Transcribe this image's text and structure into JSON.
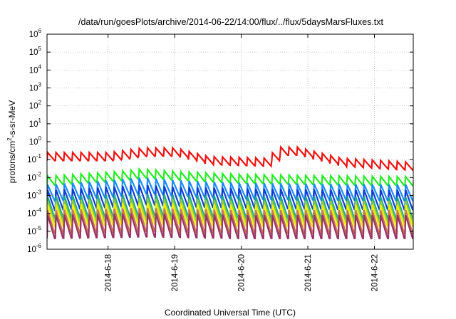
{
  "chart_data": {
    "type": "line",
    "title": "/data/run/goesPlots/archive/2014-06-22/14:00/flux/../flux/5daysMarsFluxes.txt",
    "xlabel": "Coordinated Universal Time (UTC)",
    "ylabel": "protons/cm2-s-sr-MeV",
    "y_scale": "log",
    "ylim": [
      1e-06,
      1000000.0
    ],
    "y_ticks": [
      {
        "base": "10",
        "exp": "-6",
        "value": 1e-06
      },
      {
        "base": "10",
        "exp": "-5",
        "value": 1e-05
      },
      {
        "base": "10",
        "exp": "-4",
        "value": 0.0001
      },
      {
        "base": "10",
        "exp": "-3",
        "value": 0.001
      },
      {
        "base": "10",
        "exp": "-2",
        "value": 0.01
      },
      {
        "base": "10",
        "exp": "-1",
        "value": 0.1
      },
      {
        "base": "10",
        "exp": "0",
        "value": 1
      },
      {
        "base": "10",
        "exp": "1",
        "value": 10
      },
      {
        "base": "10",
        "exp": "2",
        "value": 100
      },
      {
        "base": "10",
        "exp": "3",
        "value": 1000
      },
      {
        "base": "10",
        "exp": "4",
        "value": 10000
      },
      {
        "base": "10",
        "exp": "5",
        "value": 100000
      },
      {
        "base": "10",
        "exp": "6",
        "value": 1000000
      }
    ],
    "xlim": [
      "2014-06-17T02:00",
      "2014-06-22T14:00"
    ],
    "x_ticks": [
      {
        "label": "2014-6-18",
        "value": "2014-06-18"
      },
      {
        "label": "2014-6-19",
        "value": "2014-06-19"
      },
      {
        "label": "2014-6-20",
        "value": "2014-06-20"
      },
      {
        "label": "2014-6-21",
        "value": "2014-06-21"
      },
      {
        "label": "2014-6-22",
        "value": "2014-06-22"
      }
    ],
    "grid": true,
    "legend": "none",
    "series": [
      {
        "color": "#ee1111",
        "period_hours": 3.0,
        "peak_to_trough_decades": 0.45,
        "peaks": [
          [
            "2014-06-17T02:00",
            0.25
          ],
          [
            "2014-06-18T00:00",
            0.25
          ],
          [
            "2014-06-18T12:00",
            0.45
          ],
          [
            "2014-06-19T00:00",
            0.45
          ],
          [
            "2014-06-19T12:00",
            0.15
          ],
          [
            "2014-06-20T10:00",
            0.12
          ],
          [
            "2014-06-20T12:00",
            0.5
          ],
          [
            "2014-06-20T20:00",
            0.5
          ],
          [
            "2014-06-21T12:00",
            0.12
          ],
          [
            "2014-06-22T14:00",
            0.07
          ]
        ]
      },
      {
        "color": "#22ee22",
        "period_hours": 3.0,
        "peak_to_trough_decades": 0.5,
        "peaks": [
          [
            "2014-06-17T02:00",
            0.012
          ],
          [
            "2014-06-18T00:00",
            0.02
          ],
          [
            "2014-06-18T12:00",
            0.03
          ],
          [
            "2014-06-19T00:00",
            0.022
          ],
          [
            "2014-06-20T00:00",
            0.015
          ],
          [
            "2014-06-21T00:00",
            0.013
          ],
          [
            "2014-06-22T14:00",
            0.011
          ]
        ]
      },
      {
        "color": "#1a8cff",
        "period_hours": 3.0,
        "peak_to_trough_decades": 0.9,
        "peaks": [
          [
            "2014-06-17T02:00",
            0.004
          ],
          [
            "2014-06-18T00:00",
            0.007
          ],
          [
            "2014-06-18T12:00",
            0.01
          ],
          [
            "2014-06-19T00:00",
            0.007
          ],
          [
            "2014-06-20T00:00",
            0.005
          ],
          [
            "2014-06-21T00:00",
            0.0045
          ],
          [
            "2014-06-22T14:00",
            0.004
          ]
        ]
      },
      {
        "color": "#0d3fd6",
        "period_hours": 3.0,
        "peak_to_trough_decades": 1.1,
        "peaks": [
          [
            "2014-06-17T02:00",
            0.002
          ],
          [
            "2014-06-18T00:00",
            0.003
          ],
          [
            "2014-06-18T12:00",
            0.004
          ],
          [
            "2014-06-19T00:00",
            0.003
          ],
          [
            "2014-06-20T00:00",
            0.0025
          ],
          [
            "2014-06-21T00:00",
            0.0022
          ],
          [
            "2014-06-22T14:00",
            0.002
          ]
        ]
      },
      {
        "color": "#22aa88",
        "period_hours": 3.0,
        "peak_to_trough_decades": 1.2,
        "peaks": [
          [
            "2014-06-17T02:00",
            0.0009
          ],
          [
            "2014-06-18T12:00",
            0.0012
          ],
          [
            "2014-06-20T00:00",
            0.0009
          ],
          [
            "2014-06-22T14:00",
            0.0008
          ]
        ]
      },
      {
        "color": "#88cc44",
        "period_hours": 3.0,
        "peak_to_trough_decades": 1.2,
        "peaks": [
          [
            "2014-06-17T02:00",
            0.0005
          ],
          [
            "2014-06-18T12:00",
            0.0007
          ],
          [
            "2014-06-20T00:00",
            0.0005
          ],
          [
            "2014-06-22T14:00",
            0.0005
          ]
        ]
      },
      {
        "color": "#eeee00",
        "period_hours": 3.0,
        "peak_to_trough_decades": 1.2,
        "peaks": [
          [
            "2014-06-17T02:00",
            0.0003
          ],
          [
            "2014-06-18T12:00",
            0.0004
          ],
          [
            "2014-06-20T00:00",
            0.0003
          ],
          [
            "2014-06-22T14:00",
            0.0003
          ]
        ]
      },
      {
        "color": "#cc7755",
        "period_hours": 3.0,
        "peak_to_trough_decades": 1.3,
        "peaks": [
          [
            "2014-06-17T02:00",
            0.00015
          ],
          [
            "2014-06-18T12:00",
            0.0002
          ],
          [
            "2014-06-20T00:00",
            0.00015
          ],
          [
            "2014-06-22T14:00",
            0.00015
          ]
        ]
      },
      {
        "color": "#993366",
        "period_hours": 3.0,
        "peak_to_trough_decades": 1.3,
        "peaks": [
          [
            "2014-06-17T02:00",
            8e-05
          ],
          [
            "2014-06-18T12:00",
            0.0001
          ],
          [
            "2014-06-20T00:00",
            8e-05
          ],
          [
            "2014-06-22T14:00",
            8e-05
          ]
        ]
      }
    ]
  }
}
